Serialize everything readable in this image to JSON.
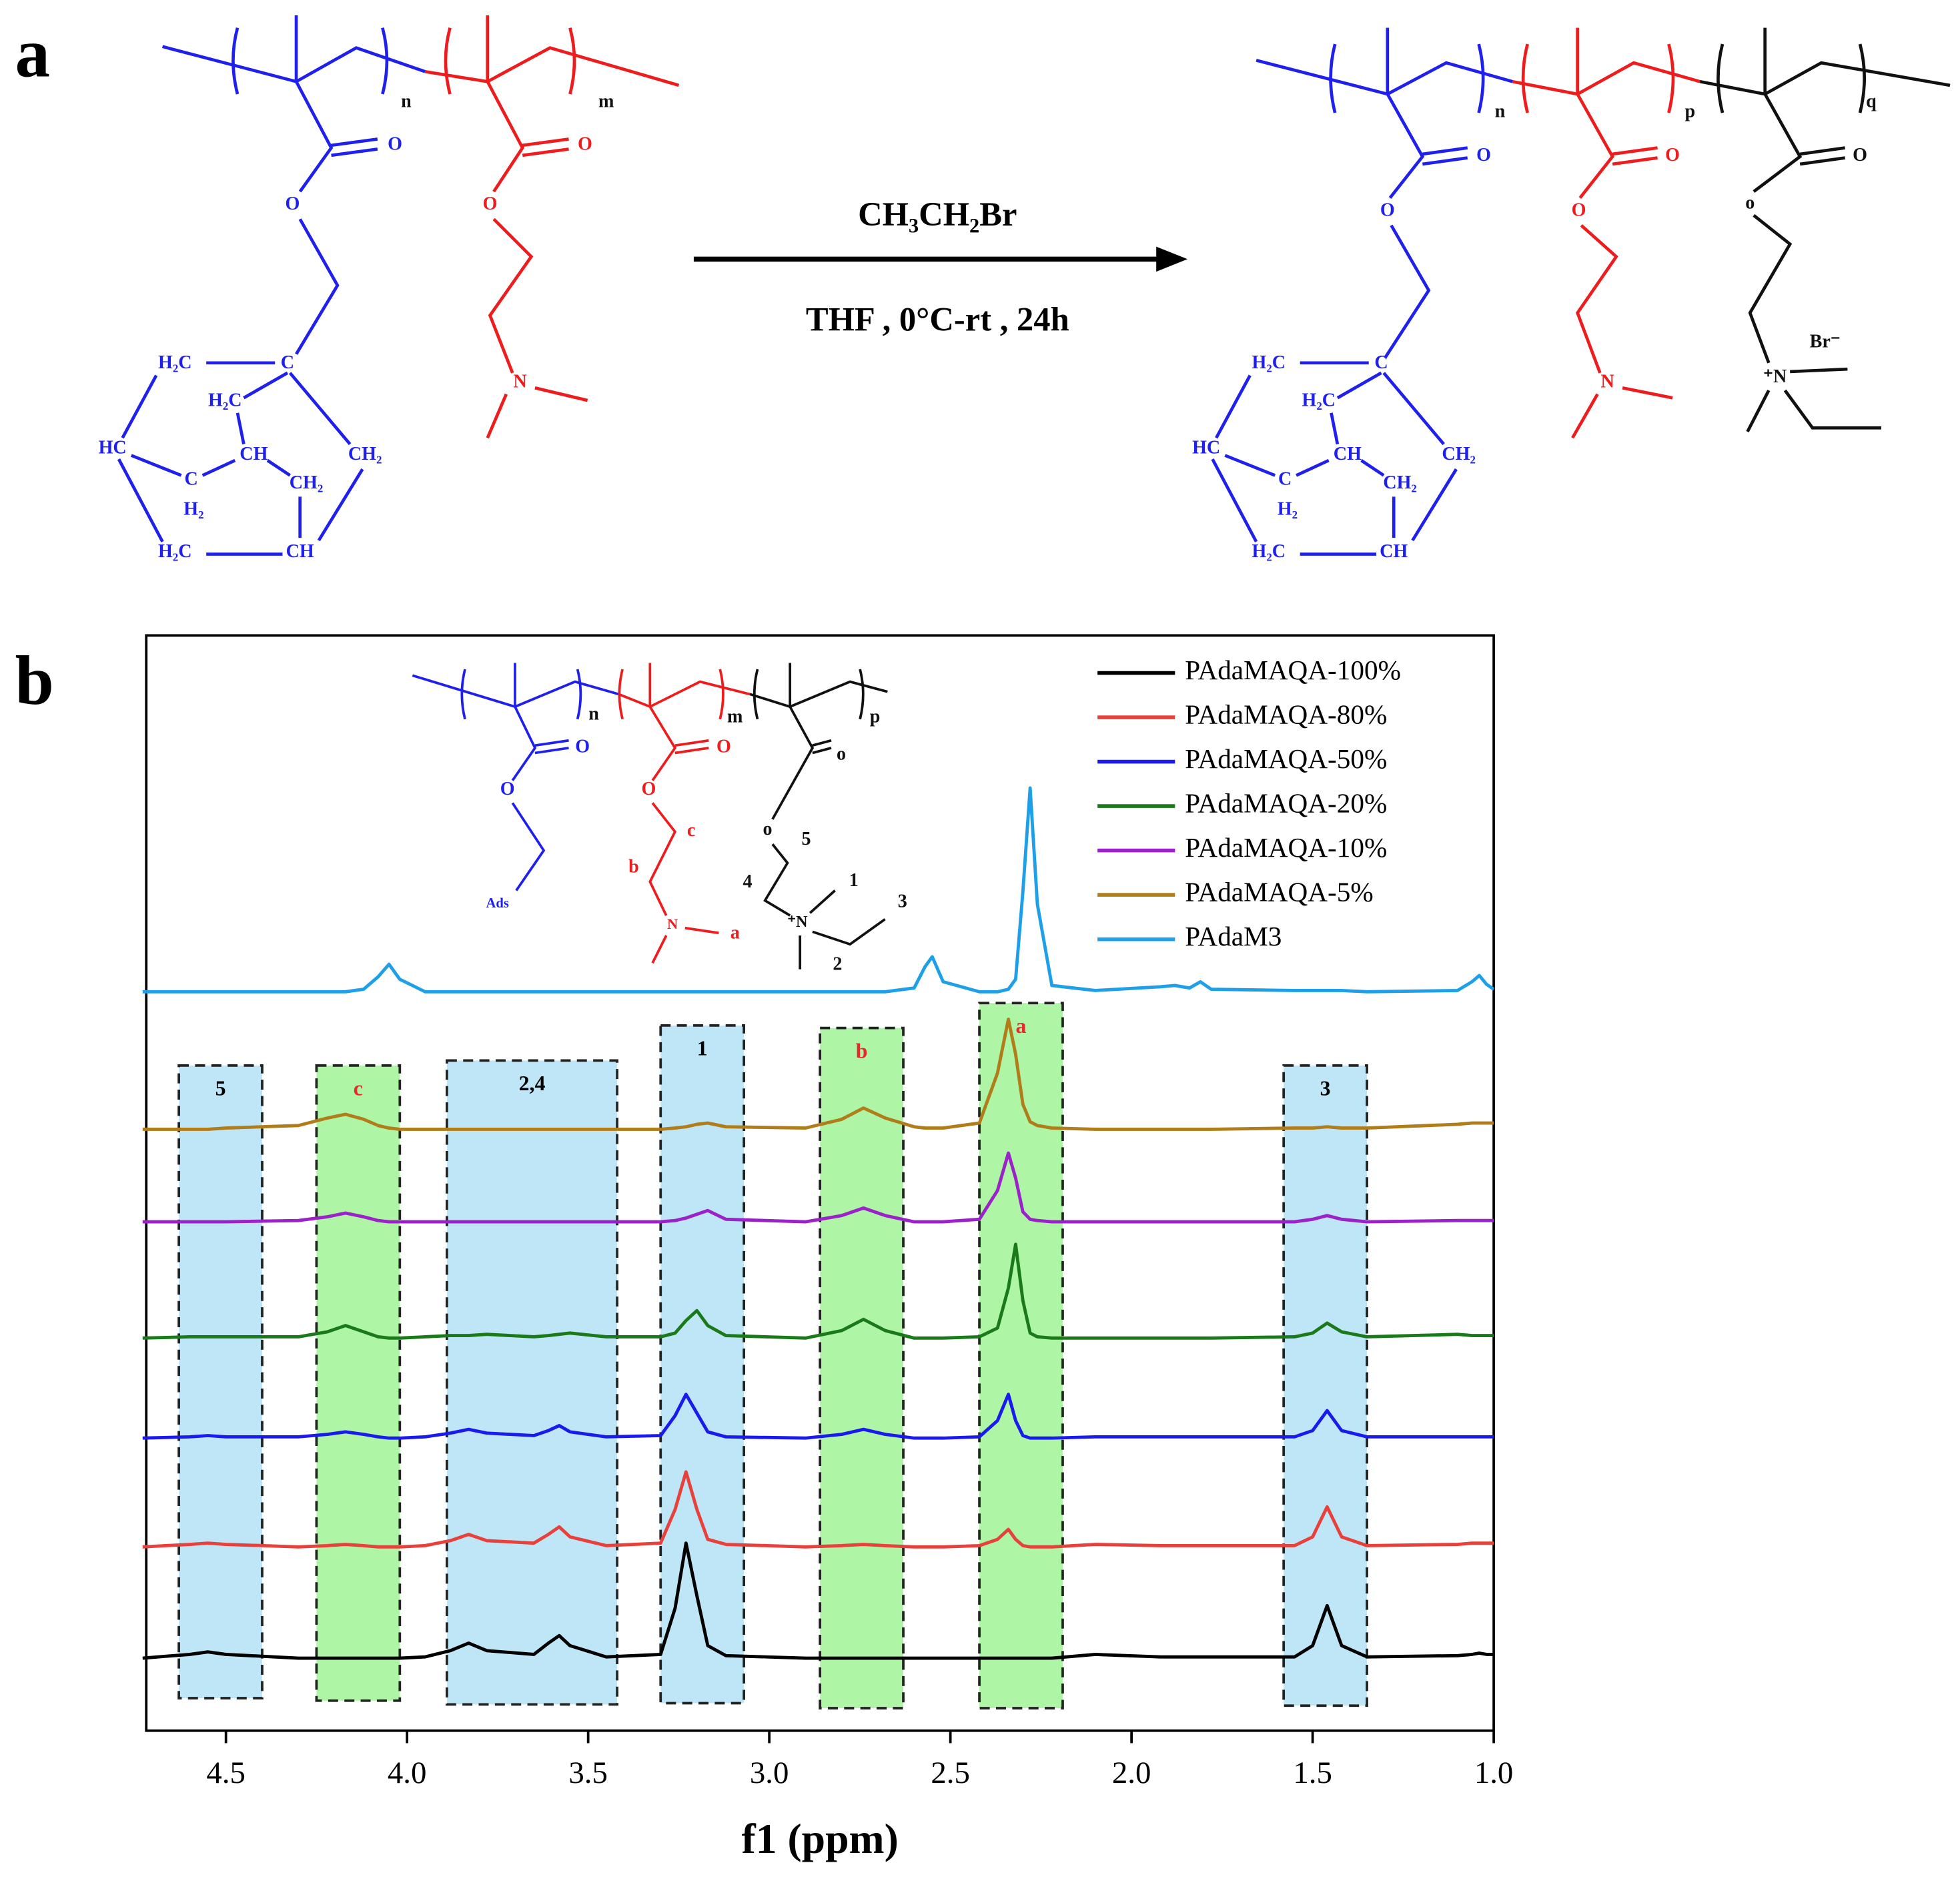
{
  "panel_labels": [
    "a",
    "b"
  ],
  "scheme": {
    "reactant": [
      "n",
      "m",
      "O",
      "O",
      "O",
      "O",
      "N",
      "H₂C",
      "C",
      "H₂C",
      "CH",
      "HC",
      "C",
      "H₂",
      "CH₂",
      "CH₂",
      "H₂C",
      "CH"
    ],
    "reagent": "CH₃CH₂Br",
    "conditions": "THF ,  0°C-rt , 24h",
    "product": [
      "n",
      "p",
      "q",
      "O",
      "O",
      "O",
      "O",
      "O",
      "o",
      "N",
      "⁺N",
      "Br⁻",
      "H₂C",
      "C",
      "H₂C",
      "CH",
      "HC",
      "C",
      "H₂",
      "CH₂",
      "CH₂",
      "H₂C",
      "CH"
    ]
  },
  "inset": [
    "n",
    "m",
    "p",
    "O",
    "O",
    "o",
    "O",
    "O",
    "o",
    "Ads",
    "c",
    "b",
    "N",
    "a",
    "5",
    "4",
    "1",
    "3",
    "⁺N",
    "2"
  ],
  "chart_data": {
    "type": "line",
    "xlabel": "f1 (ppm)",
    "legend": "upper right",
    "grid": false,
    "xlim": [
      4.72,
      1.0
    ],
    "xticks": [
      4.5,
      {
        "value": 4,
        "label": "4.0"
      },
      3.5,
      {
        "value": 3,
        "label": "3.0"
      },
      2.5,
      {
        "value": 2,
        "label": "2.0"
      },
      1.5,
      {
        "value": 1,
        "label": "1.0"
      }
    ],
    "x": [
      4.73,
      4.6,
      4.55,
      4.5,
      4.3,
      4.22,
      4.17,
      4.12,
      4.08,
      4.05,
      4.02,
      3.95,
      3.88,
      3.83,
      3.78,
      3.65,
      3.61,
      3.58,
      3.55,
      3.45,
      3.3,
      3.26,
      3.23,
      3.2,
      3.17,
      3.12,
      2.9,
      2.8,
      2.74,
      2.68,
      2.6,
      2.57,
      2.55,
      2.52,
      2.42,
      2.37,
      2.34,
      2.32,
      2.3,
      2.28,
      2.26,
      2.22,
      2.1,
      1.92,
      1.88,
      1.84,
      1.81,
      1.78,
      1.55,
      1.5,
      1.46,
      1.42,
      1.35,
      1.1,
      1.06,
      1.04,
      1.02,
      1.0
    ],
    "series": [
      {
        "name": "PAdaMAQA-100%",
        "color": "#000000",
        "values": [
          0,
          3,
          5,
          3,
          0,
          0,
          0,
          0,
          0,
          0,
          0,
          1,
          6,
          12,
          6,
          3,
          12,
          18,
          10,
          1,
          3,
          40,
          92,
          50,
          10,
          2,
          0,
          0,
          0,
          0,
          0,
          0,
          0,
          0,
          0,
          0,
          0,
          0,
          0,
          0,
          0,
          0,
          3,
          1,
          1,
          1,
          1,
          1,
          1,
          10,
          42,
          10,
          1,
          2,
          3,
          4,
          3,
          3
        ]
      },
      {
        "name": "PAdaMAQA-80%",
        "color": "#e8413c",
        "values": [
          0,
          2,
          3,
          2,
          0,
          1,
          2,
          1,
          0,
          0,
          0,
          1,
          5,
          10,
          5,
          3,
          10,
          16,
          8,
          1,
          3,
          30,
          60,
          30,
          6,
          2,
          0,
          1,
          2,
          1,
          0,
          0,
          0,
          0,
          1,
          6,
          14,
          6,
          1,
          0,
          0,
          0,
          2,
          1,
          1,
          1,
          1,
          1,
          1,
          8,
          32,
          8,
          1,
          2,
          3,
          3,
          3,
          3
        ]
      },
      {
        "name": "PAdaMAQA-50%",
        "color": "#1a1aef",
        "values": [
          0,
          1,
          2,
          1,
          1,
          3,
          5,
          3,
          1,
          0,
          0,
          1,
          4,
          7,
          4,
          2,
          6,
          10,
          5,
          1,
          2,
          18,
          35,
          20,
          5,
          1,
          0,
          3,
          7,
          3,
          0,
          0,
          0,
          0,
          1,
          14,
          35,
          14,
          2,
          0,
          0,
          0,
          1,
          1,
          1,
          1,
          1,
          1,
          1,
          6,
          22,
          6,
          1,
          1,
          1,
          1,
          1,
          1
        ]
      },
      {
        "name": "PAdaMAQA-20%",
        "color": "#1a7a1a",
        "values": [
          0,
          1,
          1,
          1,
          1,
          5,
          10,
          5,
          1,
          0,
          0,
          1,
          2,
          2,
          3,
          1,
          2,
          3,
          4,
          1,
          1,
          4,
          14,
          22,
          10,
          2,
          0,
          6,
          15,
          6,
          0,
          0,
          0,
          0,
          1,
          8,
          40,
          75,
          30,
          4,
          1,
          0,
          0,
          0,
          0,
          0,
          0,
          0,
          1,
          4,
          12,
          5,
          1,
          3,
          2,
          2,
          2,
          2
        ]
      },
      {
        "name": "PAdaMAQA-10%",
        "color": "#9b22c8",
        "values": [
          0,
          0,
          0,
          0,
          1,
          4,
          7,
          4,
          1,
          0,
          0,
          0,
          0,
          0,
          0,
          0,
          0,
          0,
          0,
          0,
          0,
          1,
          3,
          6,
          9,
          2,
          0,
          5,
          11,
          5,
          0,
          0,
          0,
          0,
          2,
          25,
          55,
          35,
          8,
          2,
          1,
          0,
          0,
          0,
          0,
          0,
          0,
          0,
          0,
          2,
          5,
          2,
          0,
          1,
          1,
          1,
          1,
          1
        ]
      },
      {
        "name": "PAdaMAQA-5%",
        "color": "#b07d1a",
        "values": [
          0,
          0,
          0,
          1,
          3,
          9,
          12,
          8,
          3,
          1,
          0,
          0,
          0,
          0,
          0,
          0,
          0,
          0,
          0,
          0,
          0,
          1,
          2,
          4,
          5,
          2,
          1,
          8,
          17,
          9,
          2,
          1,
          1,
          1,
          5,
          45,
          88,
          60,
          20,
          6,
          3,
          1,
          0,
          0,
          0,
          0,
          0,
          0,
          1,
          1,
          2,
          1,
          1,
          4,
          5,
          5,
          5,
          5
        ]
      },
      {
        "name": "PAdaM3",
        "color": "#1ea0e8",
        "values": [
          0,
          0,
          0,
          0,
          0,
          0,
          0,
          2,
          12,
          22,
          10,
          0,
          0,
          0,
          0,
          0,
          0,
          0,
          0,
          0,
          0,
          0,
          0,
          0,
          0,
          0,
          0,
          0,
          0,
          0,
          3,
          20,
          28,
          8,
          0,
          0,
          2,
          10,
          80,
          163,
          70,
          5,
          1,
          4,
          5,
          3,
          8,
          2,
          1,
          1,
          1,
          1,
          0,
          1,
          8,
          13,
          6,
          2
        ]
      }
    ],
    "annotations": [
      {
        "label": "5",
        "x_range": [
          4.63,
          4.4
        ],
        "color": "#bfe6f7",
        "label_color": "#000000"
      },
      {
        "label": "c",
        "x_range": [
          4.25,
          4.02
        ],
        "color": "#aef5a6",
        "label_color": "#e8282a"
      },
      {
        "label": "2,4",
        "x_range": [
          3.89,
          3.42
        ],
        "color": "#bfe6f7",
        "label_color": "#000000"
      },
      {
        "label": "1",
        "x_range": [
          3.3,
          3.07
        ],
        "color": "#bfe6f7",
        "label_color": "#000000"
      },
      {
        "label": "b",
        "x_range": [
          2.86,
          2.63
        ],
        "color": "#aef5a6",
        "label_color": "#e8282a"
      },
      {
        "label": "a",
        "x_range": [
          2.42,
          2.19
        ],
        "color": "#aef5a6",
        "label_color": "#e8282a"
      },
      {
        "label": "3",
        "x_range": [
          1.58,
          1.35
        ],
        "color": "#bfe6f7",
        "label_color": "#000000"
      }
    ]
  }
}
